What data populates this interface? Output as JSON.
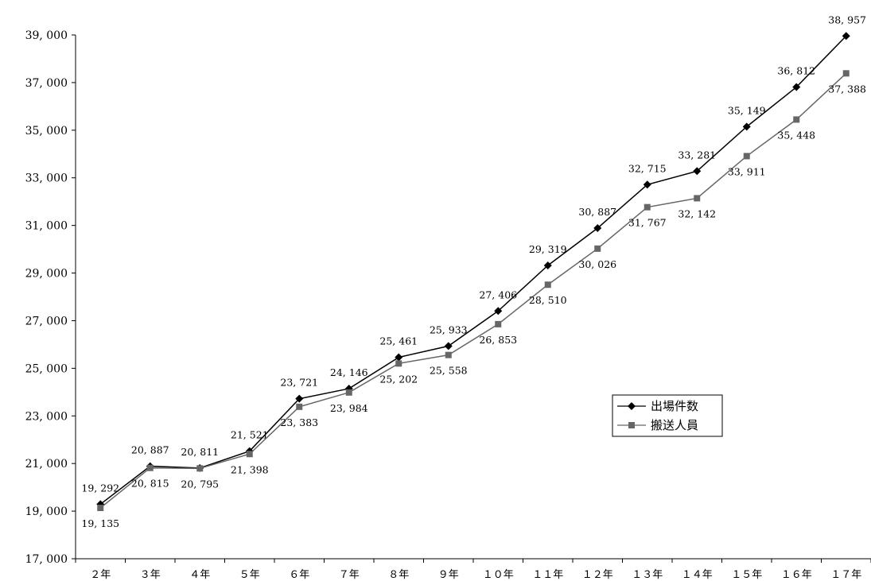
{
  "chart_data": {
    "type": "line",
    "categories": [
      "２年",
      "３年",
      "４年",
      "５年",
      "６年",
      "７年",
      "８年",
      "９年",
      "１０年",
      "１１年",
      "１２年",
      "１３年",
      "１４年",
      "１５年",
      "１６年",
      "１７年"
    ],
    "ylim": [
      17000,
      39000
    ],
    "yticks": [
      17000,
      19000,
      21000,
      23000,
      25000,
      27000,
      29000,
      31000,
      33000,
      35000,
      37000,
      39000
    ],
    "ytick_labels": [
      "17, 000",
      "19, 000",
      "21, 000",
      "23, 000",
      "25, 000",
      "27, 000",
      "29, 000",
      "31, 000",
      "33, 000",
      "35, 000",
      "37, 000",
      "39, 000"
    ],
    "grid": false,
    "legend_position": "right-middle",
    "series": [
      {
        "name": "出場件数",
        "marker": "diamond",
        "color": "#000000",
        "label_position": "above",
        "values": [
          19292,
          20887,
          20811,
          21521,
          23721,
          24146,
          25461,
          25933,
          27406,
          29319,
          30887,
          32715,
          33281,
          35149,
          36812,
          38957
        ],
        "labels": [
          "19, 292",
          "20, 887",
          "20, 811",
          "21, 521",
          "23, 721",
          "24, 146",
          "25, 461",
          "25, 933",
          "27, 406",
          "29, 319",
          "30, 887",
          "32, 715",
          "33, 281",
          "35, 149",
          "36, 812",
          "38, 957"
        ]
      },
      {
        "name": "搬送人員",
        "marker": "square",
        "color": "#666666",
        "label_position": "below",
        "values": [
          19135,
          20815,
          20795,
          21398,
          23383,
          23984,
          25202,
          25558,
          26853,
          28510,
          30026,
          31767,
          32142,
          33911,
          35448,
          37388
        ],
        "labels": [
          "19, 135",
          "20, 815",
          "20, 795",
          "21, 398",
          "23, 383",
          "23, 984",
          "25, 202",
          "25, 558",
          "26, 853",
          "28, 510",
          "30, 026",
          "31, 767",
          "32, 142",
          "33, 911",
          "35, 448",
          "37, 388"
        ]
      }
    ]
  }
}
